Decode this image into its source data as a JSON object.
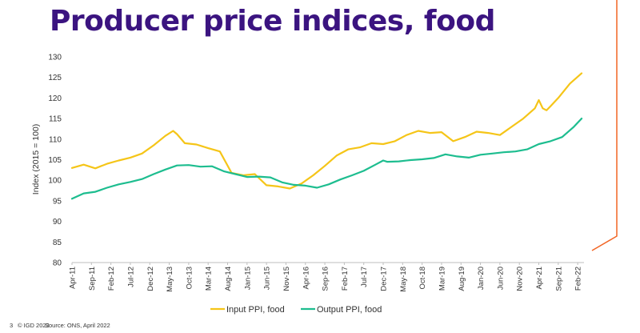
{
  "slide": {
    "title": "Producer price indices, food",
    "title_color": "#3b1480",
    "page_number": "3",
    "copyright": "© IGD 2022",
    "source": "Source: ONS, April 2022",
    "accent_color": "#f26524"
  },
  "chart_data": {
    "type": "line",
    "ylabel": "Index (2015 = 100)",
    "ylim": [
      80,
      130
    ],
    "yticks": [
      80,
      85,
      90,
      95,
      100,
      105,
      110,
      115,
      120,
      125,
      130
    ],
    "x_start": "2011-04",
    "x_end": "2022-03",
    "xtick_labels": [
      "Apr-11",
      "Sep-11",
      "Feb-12",
      "Jul-12",
      "Dec-12",
      "May-13",
      "Oct-13",
      "Mar-14",
      "Aug-14",
      "Jan-15",
      "Jun-15",
      "Nov-15",
      "Apr-16",
      "Sep-16",
      "Feb-17",
      "Jul-17",
      "Dec-17",
      "May-18",
      "Oct-18",
      "Mar-19",
      "Aug-19",
      "Jan-20",
      "Jun-20",
      "Nov-20",
      "Apr-21",
      "Sep-21",
      "Feb-22"
    ],
    "grid": false,
    "legend_position": "bottom-center",
    "series": [
      {
        "name": "Input PPI, food",
        "color": "#f5c518",
        "x": [
          "2011-04",
          "2011-07",
          "2011-10",
          "2012-01",
          "2012-04",
          "2012-07",
          "2012-10",
          "2013-01",
          "2013-04",
          "2013-06",
          "2013-07",
          "2013-09",
          "2013-12",
          "2014-03",
          "2014-06",
          "2014-09",
          "2014-12",
          "2015-03",
          "2015-06",
          "2015-09",
          "2015-12",
          "2016-03",
          "2016-06",
          "2016-09",
          "2016-12",
          "2017-03",
          "2017-06",
          "2017-09",
          "2017-12",
          "2018-03",
          "2018-06",
          "2018-09",
          "2018-12",
          "2019-03",
          "2019-06",
          "2019-09",
          "2019-12",
          "2020-03",
          "2020-06",
          "2020-09",
          "2020-12",
          "2021-03",
          "2021-04",
          "2021-05",
          "2021-06",
          "2021-07",
          "2021-09",
          "2021-12",
          "2022-03"
        ],
        "y": [
          103.0,
          103.8,
          102.9,
          104.0,
          104.8,
          105.5,
          106.5,
          108.5,
          110.8,
          112.0,
          111.2,
          109.0,
          108.7,
          107.8,
          107.0,
          101.8,
          101.2,
          101.5,
          98.8,
          98.5,
          98.0,
          99.2,
          101.2,
          103.5,
          106.0,
          107.5,
          108.0,
          109.0,
          108.8,
          109.5,
          111.0,
          112.0,
          111.5,
          111.7,
          109.5,
          110.5,
          111.8,
          111.5,
          111.0,
          113.0,
          115.0,
          117.5,
          119.5,
          117.5,
          117.0,
          118.0,
          120.0,
          123.5,
          126.0
        ]
      },
      {
        "name": "Output PPI, food",
        "color": "#1dbd8f",
        "x": [
          "2011-04",
          "2011-07",
          "2011-10",
          "2012-01",
          "2012-04",
          "2012-07",
          "2012-10",
          "2013-01",
          "2013-04",
          "2013-07",
          "2013-10",
          "2014-01",
          "2014-04",
          "2014-07",
          "2014-10",
          "2015-01",
          "2015-04",
          "2015-07",
          "2015-10",
          "2016-01",
          "2016-04",
          "2016-07",
          "2016-10",
          "2017-01",
          "2017-04",
          "2017-07",
          "2017-10",
          "2017-12",
          "2018-01",
          "2018-04",
          "2018-07",
          "2018-10",
          "2019-01",
          "2019-04",
          "2019-07",
          "2019-10",
          "2020-01",
          "2020-04",
          "2020-07",
          "2020-10",
          "2021-01",
          "2021-04",
          "2021-07",
          "2021-10",
          "2022-01",
          "2022-03"
        ],
        "y": [
          95.5,
          96.8,
          97.2,
          98.2,
          99.0,
          99.6,
          100.3,
          101.5,
          102.6,
          103.6,
          103.7,
          103.3,
          103.4,
          102.2,
          101.5,
          100.8,
          100.9,
          100.7,
          99.5,
          98.9,
          98.7,
          98.2,
          99.0,
          100.2,
          101.2,
          102.3,
          103.8,
          104.8,
          104.5,
          104.6,
          104.9,
          105.1,
          105.4,
          106.3,
          105.8,
          105.5,
          106.2,
          106.5,
          106.8,
          107.0,
          107.5,
          108.8,
          109.5,
          110.5,
          113.0,
          115.0
        ]
      }
    ]
  }
}
